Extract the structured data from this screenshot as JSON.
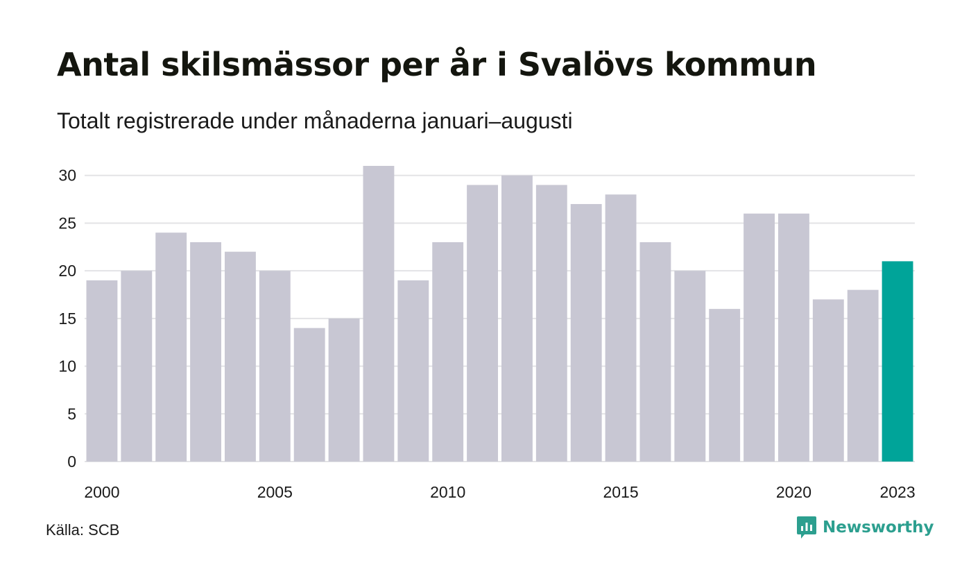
{
  "title": "Antal skilsmässor per år i Svalövs kommun",
  "subtitle": "Totalt registrerade under månaderna januari–augusti",
  "source": "Källa: SCB",
  "brand": {
    "name": "Newsworthy",
    "icon": "newsworthy-logo-icon",
    "color": "#2c9f8f"
  },
  "chart_data": {
    "type": "bar",
    "categories": [
      "2000",
      "2001",
      "2002",
      "2003",
      "2004",
      "2005",
      "2006",
      "2007",
      "2008",
      "2009",
      "2010",
      "2011",
      "2012",
      "2013",
      "2014",
      "2015",
      "2016",
      "2017",
      "2018",
      "2019",
      "2020",
      "2021",
      "2022",
      "2023"
    ],
    "values": [
      19,
      20,
      24,
      23,
      22,
      20,
      14,
      15,
      31,
      19,
      23,
      29,
      30,
      29,
      27,
      28,
      23,
      20,
      16,
      26,
      26,
      17,
      18,
      21
    ],
    "x_tick_labels": [
      "2000",
      "2005",
      "2010",
      "2015",
      "2020",
      "2023"
    ],
    "y_ticks": [
      0,
      5,
      10,
      15,
      20,
      25,
      30
    ],
    "ylim": [
      0,
      31
    ],
    "grid": true,
    "bar_color": "#c8c7d3",
    "highlight_color": "#00a499",
    "highlight_category": "2023"
  }
}
